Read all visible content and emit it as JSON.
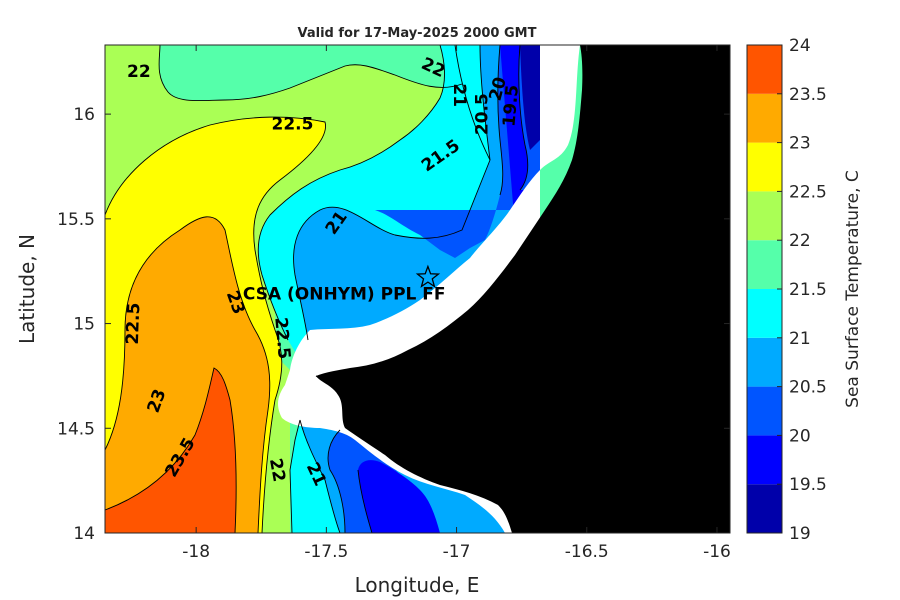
{
  "chart_data": {
    "type": "contour",
    "title": "Valid for 17-May-2025 2000 GMT",
    "xlabel": "Longitude, E",
    "ylabel": "Latitude, N",
    "xlim": [
      -18.35,
      -15.95
    ],
    "ylim": [
      14.0,
      16.33
    ],
    "xticks": [
      -18,
      -17.5,
      -17,
      -16.5,
      -16
    ],
    "xtick_labels": [
      "-18",
      "-17.5",
      "-17",
      "-16.5",
      "-16"
    ],
    "yticks": [
      14,
      14.5,
      15,
      15.5,
      16
    ],
    "ytick_labels": [
      "14",
      "14.5",
      "15",
      "15.5",
      "16"
    ],
    "colorbar": {
      "label": "Sea Surface Temperature, C",
      "min": 19,
      "max": 24,
      "ticks": [
        19,
        19.5,
        20,
        20.5,
        21,
        21.5,
        22,
        22.5,
        23,
        23.5,
        24
      ],
      "tick_labels": [
        "19",
        "19.5",
        "20",
        "20.5",
        "21",
        "21.5",
        "22",
        "22.5",
        "23",
        "23.5",
        "24"
      ],
      "colors": [
        "#0000aa",
        "#0000ff",
        "#0055ff",
        "#00aaff",
        "#00ffff",
        "#55ffaa",
        "#aaff55",
        "#ffff00",
        "#ffaa00",
        "#ff5500"
      ]
    },
    "contour_labels": [
      {
        "text": "22",
        "lon": -18.22,
        "lat": 16.2,
        "rot": 0
      },
      {
        "text": "22",
        "lon": -17.09,
        "lat": 16.22,
        "rot": 25
      },
      {
        "text": "22.5",
        "lon": -17.63,
        "lat": 15.95,
        "rot": 0
      },
      {
        "text": "21.5",
        "lon": -17.06,
        "lat": 15.8,
        "rot": -35
      },
      {
        "text": "21",
        "lon": -16.99,
        "lat": 16.09,
        "rot": 90
      },
      {
        "text": "20.5",
        "lon": -16.9,
        "lat": 16.0,
        "rot": -90
      },
      {
        "text": "20",
        "lon": -16.84,
        "lat": 16.12,
        "rot": -75
      },
      {
        "text": "19.5",
        "lon": -16.79,
        "lat": 16.04,
        "rot": -85
      },
      {
        "text": "21",
        "lon": -17.46,
        "lat": 15.48,
        "rot": -55
      },
      {
        "text": "22.5",
        "lon": -18.24,
        "lat": 15.0,
        "rot": -88
      },
      {
        "text": "23",
        "lon": -17.85,
        "lat": 15.1,
        "rot": 70
      },
      {
        "text": "22.5",
        "lon": -17.67,
        "lat": 14.93,
        "rot": 85
      },
      {
        "text": "23",
        "lon": -18.15,
        "lat": 14.63,
        "rot": -70
      },
      {
        "text": "23.5",
        "lon": -18.06,
        "lat": 14.36,
        "rot": -60
      },
      {
        "text": "22",
        "lon": -17.69,
        "lat": 14.3,
        "rot": 80
      },
      {
        "text": "21",
        "lon": -17.54,
        "lat": 14.28,
        "rot": 65
      }
    ],
    "marker": {
      "symbol": "star",
      "lon": -17.11,
      "lat": 15.22,
      "label": "CSA (ONHYM) PPL FF"
    },
    "land_color": "#000000",
    "mask_color": "#ffffff"
  }
}
